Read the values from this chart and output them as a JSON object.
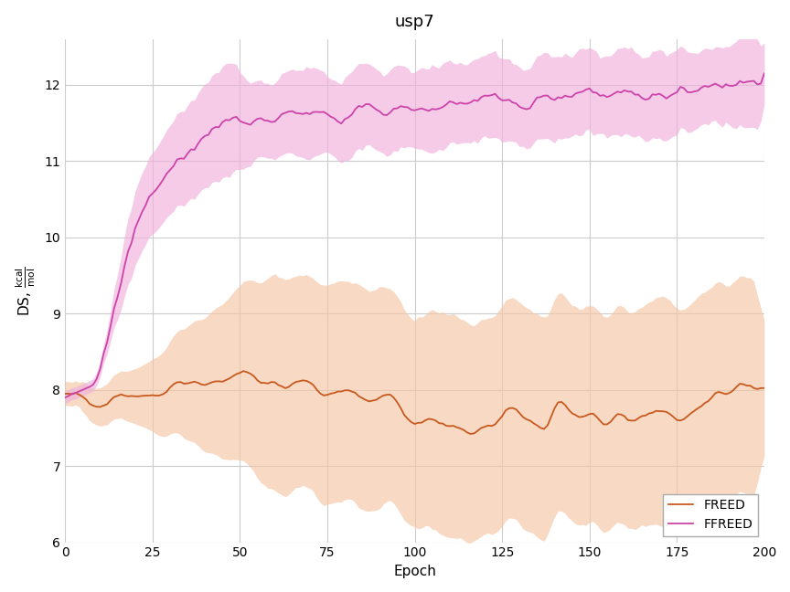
{
  "title": "usp7",
  "xlabel": "Epoch",
  "ylim": [
    6,
    12.6
  ],
  "xlim": [
    0,
    200
  ],
  "xticks": [
    0,
    25,
    50,
    75,
    100,
    125,
    150,
    175,
    200
  ],
  "yticks": [
    6,
    7,
    8,
    9,
    10,
    11,
    12
  ],
  "freed_color": "#c85a20",
  "freed_fill_color": "#f5c5a3",
  "freed_fill_alpha": 0.65,
  "ffreed_color": "#cc44aa",
  "ffreed_fill_color": "#f0b0dc",
  "ffreed_fill_alpha": 0.65,
  "background_color": "#ffffff",
  "grid_color": "#cccccc",
  "seed": 42,
  "n_epochs": 201
}
